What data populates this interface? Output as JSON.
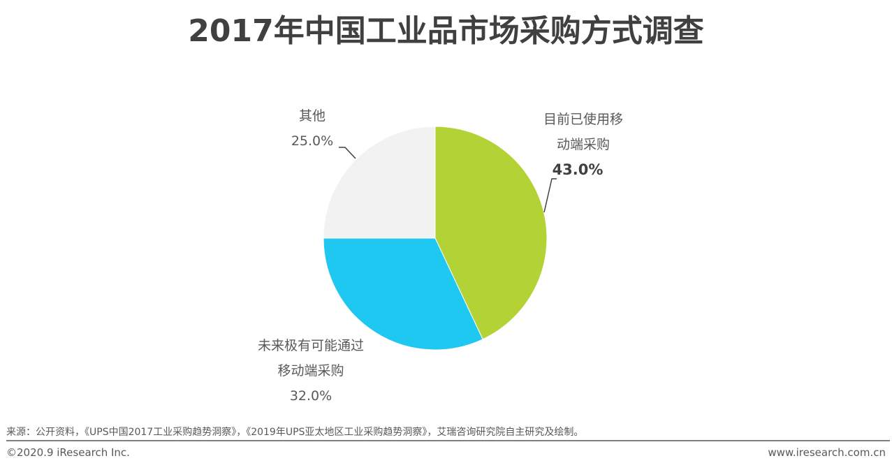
{
  "title": "2017年中国工业品市场采购方式调查",
  "chart_data": {
    "type": "pie",
    "title": "2017年中国工业品市场采购方式调查",
    "categories": [
      "目前已使用移动端采购",
      "未来极有可能通过移动端采购",
      "其他"
    ],
    "values": [
      43.0,
      32.0,
      25.0
    ],
    "unit": "%",
    "colors": [
      "#b2d235",
      "#1fc8f0",
      "#f2f2f2"
    ],
    "start_angle": "12 o'clock, clockwise",
    "legend": "none (direct labels)"
  },
  "labels": {
    "green": {
      "line1": "目前已使用移",
      "line2": "动端采购",
      "pct": "43.0%"
    },
    "blue": {
      "line1": "未来极有可能通过",
      "line2": "移动端采购",
      "pct": "32.0%"
    },
    "gray": {
      "line1": "其他",
      "pct": "25.0%"
    }
  },
  "footer": {
    "source": "来源：公开资料，《UPS中国2017工业采购趋势洞察》，《2019年UPS亚太地区工业采购趋势洞察》，艾瑞咨询研究院自主研究及绘制。",
    "copyright": "©2020.9 iResearch Inc.",
    "website": "www.iresearch.com.cn"
  }
}
